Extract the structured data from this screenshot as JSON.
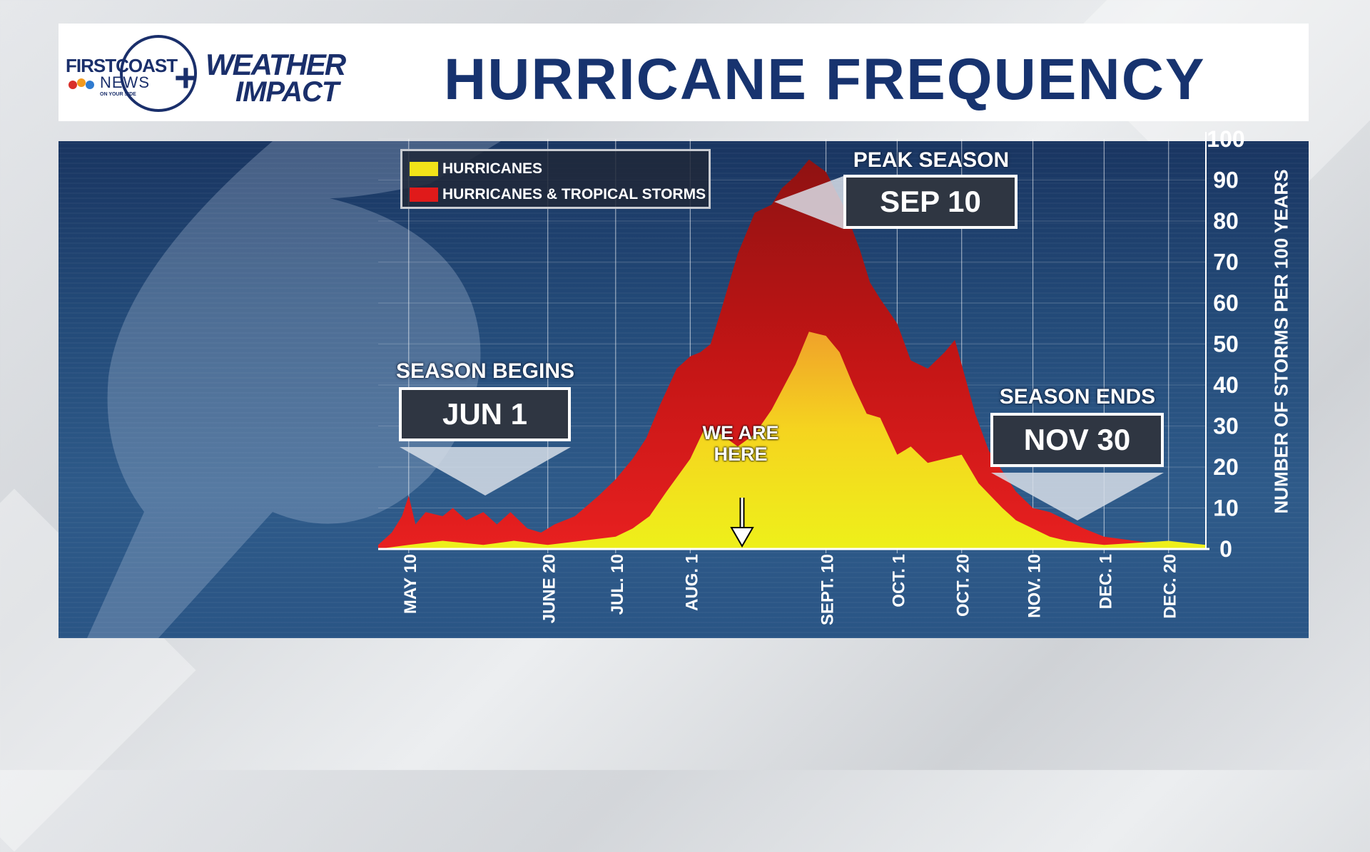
{
  "header": {
    "title": "HURRICANE FREQUENCY",
    "logo": {
      "line1": "FIRSTCOAST",
      "line2": "NEWS",
      "tagline": "ON YOUR SIDE",
      "plus": "+",
      "brand1": "WEATHER",
      "brand2": "IMPACT"
    }
  },
  "legend": {
    "items": [
      {
        "label": "HURRICANES",
        "color": "#f2e319"
      },
      {
        "label": "HURRICANES & TROPICAL STORMS",
        "color": "#e01a1a"
      }
    ]
  },
  "annotations": {
    "begins": {
      "label": "SEASON BEGINS",
      "date": "JUN 1"
    },
    "peak": {
      "label": "PEAK SEASON",
      "date": "SEP 10"
    },
    "ends": {
      "label": "SEASON ENDS",
      "date": "NOV 30"
    },
    "marker": {
      "label": "WE ARE HERE"
    }
  },
  "chart_data": {
    "type": "area",
    "x_start": "May 1",
    "x_end": "Dec 31",
    "categories": [
      "MAY 10",
      "JUNE 20",
      "JUL. 10",
      "AUG. 1",
      "SEPT. 10",
      "OCT. 1",
      "OCT. 20",
      "NOV. 10",
      "DEC. 1",
      "DEC. 20"
    ],
    "ylabel": "NUMBER OF STORMS PER 100 YEARS",
    "ylim": [
      0,
      100
    ],
    "yticks": [
      0,
      10,
      20,
      30,
      40,
      50,
      60,
      70,
      80,
      90,
      100
    ],
    "grid": true,
    "legend_position": "top-left",
    "series": [
      {
        "name": "HURRICANES & TROPICAL STORMS",
        "color": "#e01a1a",
        "points": [
          [
            "May 1",
            1
          ],
          [
            "May 5",
            4
          ],
          [
            "May 8",
            8
          ],
          [
            "May 10",
            13
          ],
          [
            "May 12",
            6
          ],
          [
            "May 15",
            9
          ],
          [
            "May 20",
            8
          ],
          [
            "May 23",
            10
          ],
          [
            "May 27",
            7
          ],
          [
            "Jun 1",
            9
          ],
          [
            "Jun 5",
            6
          ],
          [
            "Jun 9",
            9
          ],
          [
            "Jun 14",
            5
          ],
          [
            "Jun 18",
            4
          ],
          [
            "Jun 22",
            6
          ],
          [
            "Jun 28",
            8
          ],
          [
            "Jul 5",
            13
          ],
          [
            "Jul 10",
            17
          ],
          [
            "Jul 15",
            22
          ],
          [
            "Jul 19",
            27
          ],
          [
            "Jul 23",
            35
          ],
          [
            "Jul 28",
            44
          ],
          [
            "Aug 1",
            47
          ],
          [
            "Aug 4",
            48
          ],
          [
            "Aug 7",
            50
          ],
          [
            "Aug 10",
            58
          ],
          [
            "Aug 15",
            72
          ],
          [
            "Aug 20",
            82
          ],
          [
            "Aug 25",
            84
          ],
          [
            "Aug 28",
            88
          ],
          [
            "Sep 1",
            91
          ],
          [
            "Sep 5",
            95
          ],
          [
            "Sep 10",
            92
          ],
          [
            "Sep 15",
            84
          ],
          [
            "Sep 20",
            73
          ],
          [
            "Sep 23",
            65
          ],
          [
            "Sep 26",
            61
          ],
          [
            "Oct 1",
            55
          ],
          [
            "Oct 5",
            46
          ],
          [
            "Oct 10",
            44
          ],
          [
            "Oct 15",
            48
          ],
          [
            "Oct 18",
            51
          ],
          [
            "Oct 20",
            45
          ],
          [
            "Oct 24",
            33
          ],
          [
            "Oct 28",
            24
          ],
          [
            "Nov 1",
            19
          ],
          [
            "Nov 5",
            14
          ],
          [
            "Nov 10",
            10
          ],
          [
            "Nov 15",
            9
          ],
          [
            "Nov 20",
            7
          ],
          [
            "Nov 25",
            5
          ],
          [
            "Dec 1",
            3
          ],
          [
            "Dec 10",
            2
          ],
          [
            "Dec 20",
            1
          ],
          [
            "Dec 31",
            0
          ]
        ]
      },
      {
        "name": "HURRICANES",
        "color": "#f2e319",
        "points": [
          [
            "May 1",
            0
          ],
          [
            "May 10",
            1
          ],
          [
            "May 20",
            2
          ],
          [
            "Jun 1",
            1
          ],
          [
            "Jun 10",
            2
          ],
          [
            "Jun 20",
            1
          ],
          [
            "Jun 30",
            2
          ],
          [
            "Jul 10",
            3
          ],
          [
            "Jul 15",
            5
          ],
          [
            "Jul 20",
            8
          ],
          [
            "Jul 25",
            14
          ],
          [
            "Aug 1",
            22
          ],
          [
            "Aug 5",
            29
          ],
          [
            "Aug 10",
            28
          ],
          [
            "Aug 15",
            25
          ],
          [
            "Aug 20",
            28
          ],
          [
            "Aug 25",
            34
          ],
          [
            "Sep 1",
            45
          ],
          [
            "Sep 5",
            53
          ],
          [
            "Sep 10",
            52
          ],
          [
            "Sep 14",
            48
          ],
          [
            "Sep 18",
            40
          ],
          [
            "Sep 22",
            33
          ],
          [
            "Sep 26",
            32
          ],
          [
            "Oct 1",
            23
          ],
          [
            "Oct 5",
            25
          ],
          [
            "Oct 10",
            21
          ],
          [
            "Oct 15",
            22
          ],
          [
            "Oct 20",
            23
          ],
          [
            "Oct 25",
            16
          ],
          [
            "Nov 1",
            10
          ],
          [
            "Nov 5",
            7
          ],
          [
            "Nov 10",
            5
          ],
          [
            "Nov 15",
            3
          ],
          [
            "Nov 20",
            2
          ],
          [
            "Dec 1",
            1
          ],
          [
            "Dec 20",
            2
          ],
          [
            "Dec 31",
            1
          ]
        ]
      }
    ]
  }
}
